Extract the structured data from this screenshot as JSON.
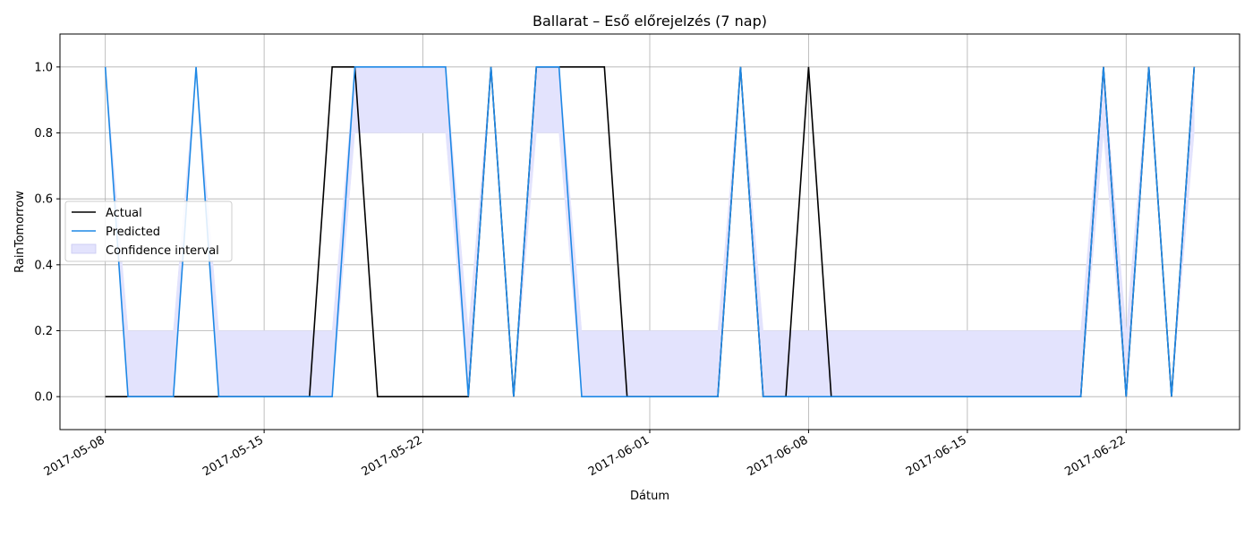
{
  "chart_data": {
    "type": "line",
    "title": "Ballarat – Eső előrejelzés (7 nap)",
    "xlabel": "Dátum",
    "ylabel": "RainTomorrow",
    "x_axis_type": "date",
    "xlim": [
      "2017-05-06",
      "2017-06-27"
    ],
    "ylim": [
      -0.1,
      1.1
    ],
    "x_ticks": [
      "2017-05-08",
      "2017-05-15",
      "2017-05-22",
      "2017-06-01",
      "2017-06-08",
      "2017-06-15",
      "2017-06-22"
    ],
    "y_ticks": [
      "0.0",
      "0.2",
      "0.4",
      "0.6",
      "0.8",
      "1.0"
    ],
    "grid": true,
    "legend_position": "center-left",
    "colors": {
      "actual": "#000000",
      "predicted": "#1e88e5",
      "confidence": "#e3e3fd",
      "grid": "#b0b0b0"
    },
    "x": [
      "2017-05-08",
      "2017-05-09",
      "2017-05-10",
      "2017-05-11",
      "2017-05-12",
      "2017-05-13",
      "2017-05-14",
      "2017-05-15",
      "2017-05-16",
      "2017-05-17",
      "2017-05-18",
      "2017-05-19",
      "2017-05-20",
      "2017-05-21",
      "2017-05-22",
      "2017-05-23",
      "2017-05-24",
      "2017-05-25",
      "2017-05-26",
      "2017-05-27",
      "2017-05-28",
      "2017-05-29",
      "2017-05-30",
      "2017-05-31",
      "2017-06-01",
      "2017-06-02",
      "2017-06-03",
      "2017-06-04",
      "2017-06-05",
      "2017-06-06",
      "2017-06-07",
      "2017-06-08",
      "2017-06-09",
      "2017-06-10",
      "2017-06-11",
      "2017-06-12",
      "2017-06-13",
      "2017-06-14",
      "2017-06-15",
      "2017-06-16",
      "2017-06-17",
      "2017-06-18",
      "2017-06-19",
      "2017-06-20",
      "2017-06-21",
      "2017-06-22",
      "2017-06-23",
      "2017-06-24",
      "2017-06-25"
    ],
    "series": [
      {
        "name": "Actual",
        "values": [
          0,
          0,
          0,
          0,
          0,
          0,
          0,
          0,
          0,
          0,
          1,
          1,
          0,
          0,
          0,
          0,
          0,
          1,
          0,
          1,
          1,
          1,
          1,
          0,
          0,
          0,
          0,
          0,
          1,
          0,
          0,
          1,
          0,
          0,
          0,
          0,
          0,
          0,
          0,
          0,
          0,
          0,
          0,
          0,
          1,
          0,
          1,
          0,
          1
        ]
      },
      {
        "name": "Predicted",
        "values": [
          1,
          0,
          0,
          0,
          1,
          0,
          0,
          0,
          0,
          0,
          0,
          1,
          1,
          1,
          1,
          1,
          0,
          1,
          0,
          1,
          1,
          0,
          0,
          0,
          0,
          0,
          0,
          0,
          1,
          0,
          0,
          0,
          0,
          0,
          0,
          0,
          0,
          0,
          0,
          0,
          0,
          0,
          0,
          0,
          1,
          0,
          1,
          0,
          1
        ]
      },
      {
        "name": "Confidence interval",
        "lower": [
          1,
          0,
          0,
          0,
          1,
          0,
          0,
          0,
          0,
          0,
          0,
          0.8,
          0.8,
          0.8,
          0.8,
          0.8,
          0,
          1,
          0,
          0.8,
          0.8,
          0,
          0,
          0,
          0,
          0,
          0,
          0,
          1,
          0,
          0,
          0,
          0,
          0,
          0,
          0,
          0,
          0,
          0,
          0,
          0,
          0,
          0,
          0,
          0.8,
          0,
          1,
          0,
          0.8
        ],
        "upper": [
          1,
          0.2,
          0.2,
          0.2,
          1,
          0.2,
          0.2,
          0.2,
          0.2,
          0.2,
          0.2,
          1,
          1,
          1,
          1,
          1,
          0.2,
          1,
          0,
          1,
          1,
          0.2,
          0.2,
          0.2,
          0.2,
          0.2,
          0.2,
          0.2,
          1,
          0.2,
          0.2,
          0.2,
          0.2,
          0.2,
          0.2,
          0.2,
          0.2,
          0.2,
          0.2,
          0.2,
          0.2,
          0.2,
          0.2,
          0.2,
          1,
          0.2,
          1,
          0,
          1
        ]
      }
    ]
  }
}
